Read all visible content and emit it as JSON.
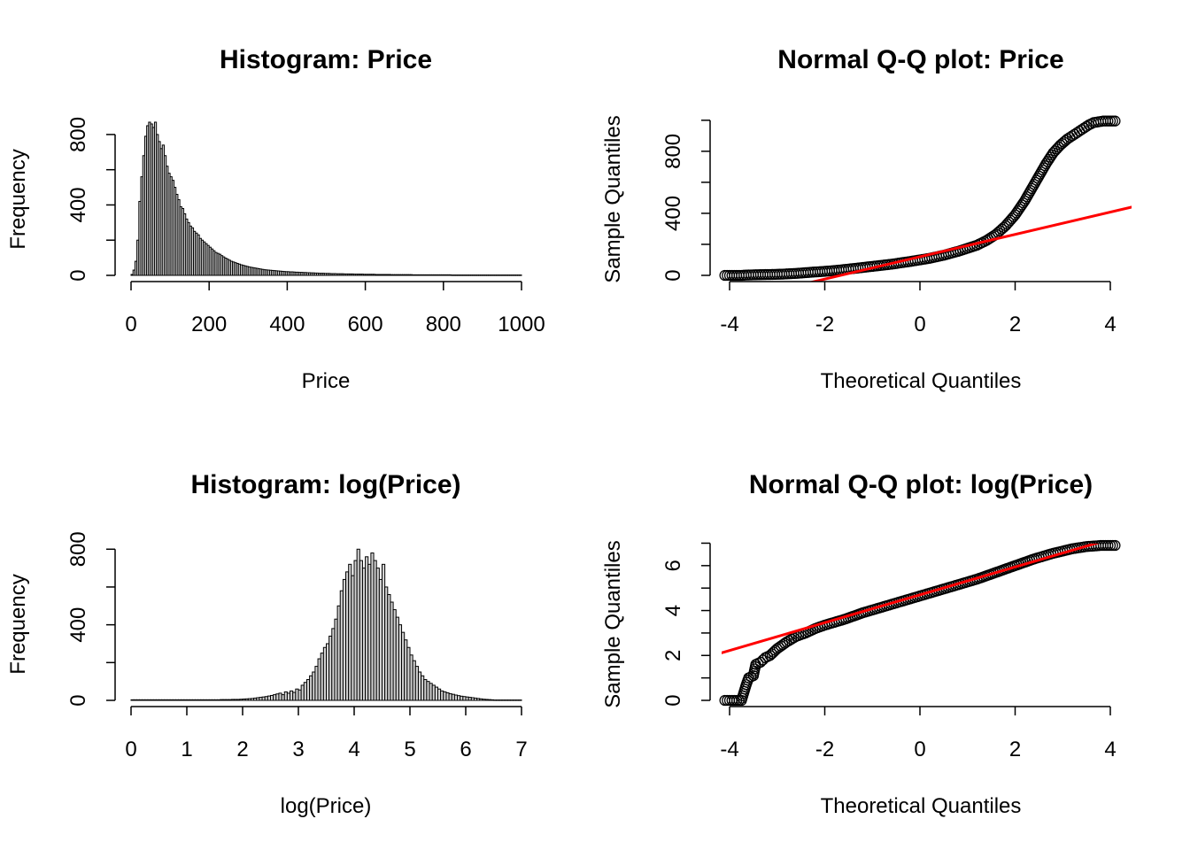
{
  "chart_data": [
    {
      "id": "hist-price",
      "type": "bar",
      "title": "Histogram: Price",
      "xlabel": "Price",
      "ylabel": "Frequency",
      "xlim": [
        0,
        1000
      ],
      "ylim": [
        0,
        880
      ],
      "x_ticks": [
        "0",
        "200",
        "400",
        "600",
        "800",
        "1000"
      ],
      "y_ticks": [
        "0",
        "400",
        "800"
      ],
      "bin_width": 5,
      "bin_start": 0,
      "values": [
        5,
        30,
        80,
        200,
        420,
        560,
        680,
        790,
        850,
        870,
        860,
        840,
        870,
        800,
        760,
        720,
        740,
        680,
        620,
        580,
        560,
        540,
        500,
        460,
        430,
        390,
        380,
        350,
        320,
        300,
        280,
        270,
        250,
        240,
        230,
        210,
        200,
        190,
        180,
        170,
        160,
        150,
        140,
        130,
        125,
        120,
        112,
        105,
        98,
        92,
        86,
        80,
        76,
        72,
        68,
        64,
        60,
        57,
        54,
        51,
        48,
        46,
        44,
        42,
        40,
        38,
        36,
        34,
        32,
        31,
        30,
        29,
        28,
        27,
        26,
        25,
        24,
        23,
        22,
        21,
        21,
        20,
        20,
        19,
        18,
        18,
        17,
        17,
        16,
        16,
        15,
        15,
        14,
        14,
        13,
        13,
        12,
        12,
        12,
        11,
        11,
        11,
        10,
        10,
        10,
        9,
        9,
        9,
        9,
        8,
        8,
        8,
        8,
        8,
        7,
        7,
        7,
        7,
        7,
        6,
        6,
        6,
        6,
        6,
        6,
        5,
        5,
        5,
        5,
        5,
        5,
        5,
        5,
        4,
        4,
        4,
        4,
        4,
        4,
        4,
        4,
        4,
        4,
        4,
        3,
        3,
        3,
        3,
        3,
        3,
        3,
        3,
        3,
        3,
        3,
        3,
        3,
        3,
        3,
        3,
        3,
        3,
        3,
        3,
        2,
        2,
        2,
        2,
        2,
        2,
        2,
        2,
        2,
        2,
        2,
        2,
        2,
        2,
        2,
        2,
        2,
        2,
        2,
        2,
        2,
        2,
        2,
        2,
        2,
        2,
        2,
        2,
        2,
        2,
        2,
        2,
        2,
        2,
        2,
        2,
        2,
        2,
        2,
        2
      ]
    },
    {
      "id": "qq-price",
      "type": "scatter",
      "title": "Normal Q-Q plot: Price",
      "xlabel": "Theoretical Quantiles",
      "ylabel": "Sample Quantiles",
      "xlim": [
        -4.2,
        4.2
      ],
      "ylim": [
        0,
        999
      ],
      "x_ticks": [
        -4,
        -2,
        0,
        2,
        4
      ],
      "y_ticks": [
        "0",
        "400",
        "800"
      ],
      "y_minor_ticks": [
        0,
        200,
        400,
        600,
        800,
        1000
      ],
      "points": [
        [
          -4.1,
          0
        ],
        [
          -3.85,
          0
        ],
        [
          -3.75,
          0
        ],
        [
          -3.65,
          2
        ],
        [
          -3.55,
          3
        ],
        [
          -3.45,
          4
        ],
        [
          -3.3,
          5
        ],
        [
          -3.1,
          6
        ],
        [
          -2.9,
          8
        ],
        [
          -2.7,
          11
        ],
        [
          -2.5,
          15
        ],
        [
          -2.3,
          20
        ],
        [
          -2.0,
          26
        ],
        [
          -1.7,
          34
        ],
        [
          -1.4,
          44
        ],
        [
          -1.0,
          58
        ],
        [
          -0.6,
          72
        ],
        [
          -0.2,
          90
        ],
        [
          0.2,
          110
        ],
        [
          0.5,
          130
        ],
        [
          0.8,
          155
        ],
        [
          1.0,
          175
        ],
        [
          1.2,
          195
        ],
        [
          1.4,
          225
        ],
        [
          1.6,
          265
        ],
        [
          1.8,
          320
        ],
        [
          2.0,
          390
        ],
        [
          2.2,
          480
        ],
        [
          2.35,
          560
        ],
        [
          2.5,
          640
        ],
        [
          2.65,
          720
        ],
        [
          2.8,
          790
        ],
        [
          2.95,
          840
        ],
        [
          3.1,
          880
        ],
        [
          3.25,
          910
        ],
        [
          3.4,
          940
        ],
        [
          3.55,
          970
        ],
        [
          3.65,
          985
        ],
        [
          3.75,
          990
        ],
        [
          3.85,
          995
        ],
        [
          4.1,
          995
        ]
      ],
      "ref_line": {
        "intercept": 120,
        "slope": 72,
        "color": "#ff0000"
      }
    },
    {
      "id": "hist-logprice",
      "type": "bar",
      "title": "Histogram: log(Price)",
      "xlabel": "log(Price)",
      "ylabel": "Frequency",
      "xlim": [
        0,
        7
      ],
      "ylim": [
        0,
        820
      ],
      "x_ticks": [
        "0",
        "1",
        "2",
        "3",
        "4",
        "5",
        "6",
        "7"
      ],
      "y_ticks": [
        "0",
        "400",
        "800"
      ],
      "bin_width": 0.05,
      "bin_start": 0,
      "values": [
        3,
        3,
        3,
        3,
        3,
        3,
        3,
        3,
        3,
        3,
        3,
        3,
        3,
        3,
        3,
        3,
        3,
        3,
        3,
        3,
        3,
        3,
        3,
        3,
        3,
        3,
        3,
        3,
        3,
        3,
        3,
        3,
        4,
        4,
        4,
        4,
        5,
        5,
        5,
        6,
        7,
        8,
        9,
        10,
        12,
        14,
        16,
        18,
        20,
        23,
        26,
        30,
        34,
        38,
        30,
        45,
        38,
        50,
        42,
        60,
        55,
        80,
        95,
        110,
        130,
        150,
        180,
        220,
        250,
        280,
        300,
        340,
        380,
        430,
        500,
        580,
        640,
        680,
        720,
        660,
        740,
        800,
        740,
        700,
        760,
        720,
        780,
        740,
        700,
        640,
        720,
        600,
        560,
        520,
        480,
        440,
        400,
        360,
        320,
        280,
        240,
        210,
        180,
        150,
        130,
        110,
        100,
        90,
        80,
        70,
        60,
        50,
        45,
        40,
        35,
        32,
        28,
        25,
        22,
        20,
        18,
        16,
        14,
        12,
        10,
        8,
        6,
        5,
        4,
        3,
        2,
        2,
        2,
        2,
        2,
        2,
        2,
        2,
        2,
        2
      ]
    },
    {
      "id": "qq-logprice",
      "type": "scatter",
      "title": "Normal Q-Q plot: log(Price)",
      "xlabel": "Theoretical Quantiles",
      "ylabel": "Sample Quantiles",
      "xlim": [
        -4.2,
        4.2
      ],
      "ylim": [
        0,
        6.9
      ],
      "x_ticks": [
        -4,
        -2,
        0,
        2,
        4
      ],
      "y_ticks": [
        "0",
        "2",
        "4",
        "6"
      ],
      "y_minor_ticks": [
        0,
        1,
        2,
        3,
        4,
        5,
        6,
        7
      ],
      "points": [
        [
          -4.1,
          0
        ],
        [
          -3.85,
          0
        ],
        [
          -3.75,
          0
        ],
        [
          -3.65,
          0.7
        ],
        [
          -3.6,
          1.0
        ],
        [
          -3.5,
          1.1
        ],
        [
          -3.45,
          1.6
        ],
        [
          -3.35,
          1.7
        ],
        [
          -3.25,
          1.9
        ],
        [
          -3.15,
          2.0
        ],
        [
          -3.0,
          2.3
        ],
        [
          -2.8,
          2.6
        ],
        [
          -2.6,
          2.85
        ],
        [
          -2.4,
          3.0
        ],
        [
          -2.2,
          3.2
        ],
        [
          -2.0,
          3.35
        ],
        [
          -1.6,
          3.6
        ],
        [
          -1.2,
          3.9
        ],
        [
          -0.8,
          4.15
        ],
        [
          -0.4,
          4.4
        ],
        [
          0.0,
          4.65
        ],
        [
          0.4,
          4.9
        ],
        [
          0.8,
          5.15
        ],
        [
          1.2,
          5.4
        ],
        [
          1.6,
          5.7
        ],
        [
          2.0,
          6.0
        ],
        [
          2.4,
          6.3
        ],
        [
          2.8,
          6.55
        ],
        [
          3.2,
          6.75
        ],
        [
          3.5,
          6.85
        ],
        [
          3.7,
          6.88
        ],
        [
          3.8,
          6.9
        ],
        [
          4.1,
          6.9
        ]
      ],
      "ref_line": {
        "intercept": 4.7,
        "slope": 0.62,
        "color": "#ff0000"
      }
    }
  ]
}
